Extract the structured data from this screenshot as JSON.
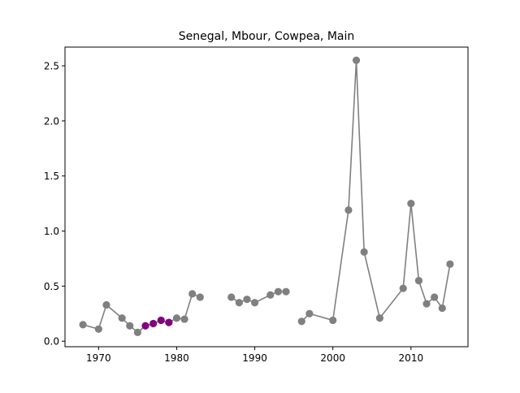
{
  "chart_data": {
    "type": "line",
    "title": "Senegal, Mbour, Cowpea, Main",
    "xlabel": "",
    "ylabel": "",
    "xlim": [
      1965.7,
      2017.3
    ],
    "ylim": [
      -0.05,
      2.67
    ],
    "x_ticks": [
      1970,
      1980,
      1990,
      2000,
      2010
    ],
    "y_ticks": [
      0.0,
      0.5,
      1.0,
      1.5,
      2.0,
      2.5
    ],
    "y_tick_labels": [
      "0.0",
      "0.5",
      "1.0",
      "1.5",
      "2.0",
      "2.5"
    ],
    "grid": false,
    "line_color": "#808080",
    "marker_color": "#808080",
    "highlight_color": "#800080",
    "segments": [
      [
        [
          1968,
          0.15
        ],
        [
          1970,
          0.11
        ],
        [
          1971,
          0.33
        ],
        [
          1973,
          0.21
        ],
        [
          1974,
          0.14
        ],
        [
          1975,
          0.08
        ],
        [
          1976,
          0.14
        ],
        [
          1977,
          0.16
        ],
        [
          1978,
          0.19
        ],
        [
          1979,
          0.17
        ],
        [
          1980,
          0.21
        ],
        [
          1981,
          0.2
        ],
        [
          1982,
          0.43
        ],
        [
          1983,
          0.4
        ]
      ],
      [
        [
          1987,
          0.4
        ],
        [
          1988,
          0.35
        ],
        [
          1989,
          0.38
        ],
        [
          1990,
          0.35
        ],
        [
          1992,
          0.42
        ],
        [
          1993,
          0.45
        ],
        [
          1994,
          0.45
        ]
      ],
      [
        [
          1996,
          0.18
        ],
        [
          1997,
          0.25
        ],
        [
          2000,
          0.19
        ],
        [
          2002,
          1.19
        ],
        [
          2003,
          2.55
        ],
        [
          2004,
          0.81
        ],
        [
          2006,
          0.21
        ],
        [
          2009,
          0.48
        ],
        [
          2010,
          1.25
        ],
        [
          2011,
          0.55
        ],
        [
          2012,
          0.34
        ],
        [
          2013,
          0.4
        ],
        [
          2014,
          0.3
        ],
        [
          2015,
          0.7
        ]
      ]
    ],
    "highlighted_years": [
      1976,
      1977,
      1978,
      1979
    ]
  }
}
